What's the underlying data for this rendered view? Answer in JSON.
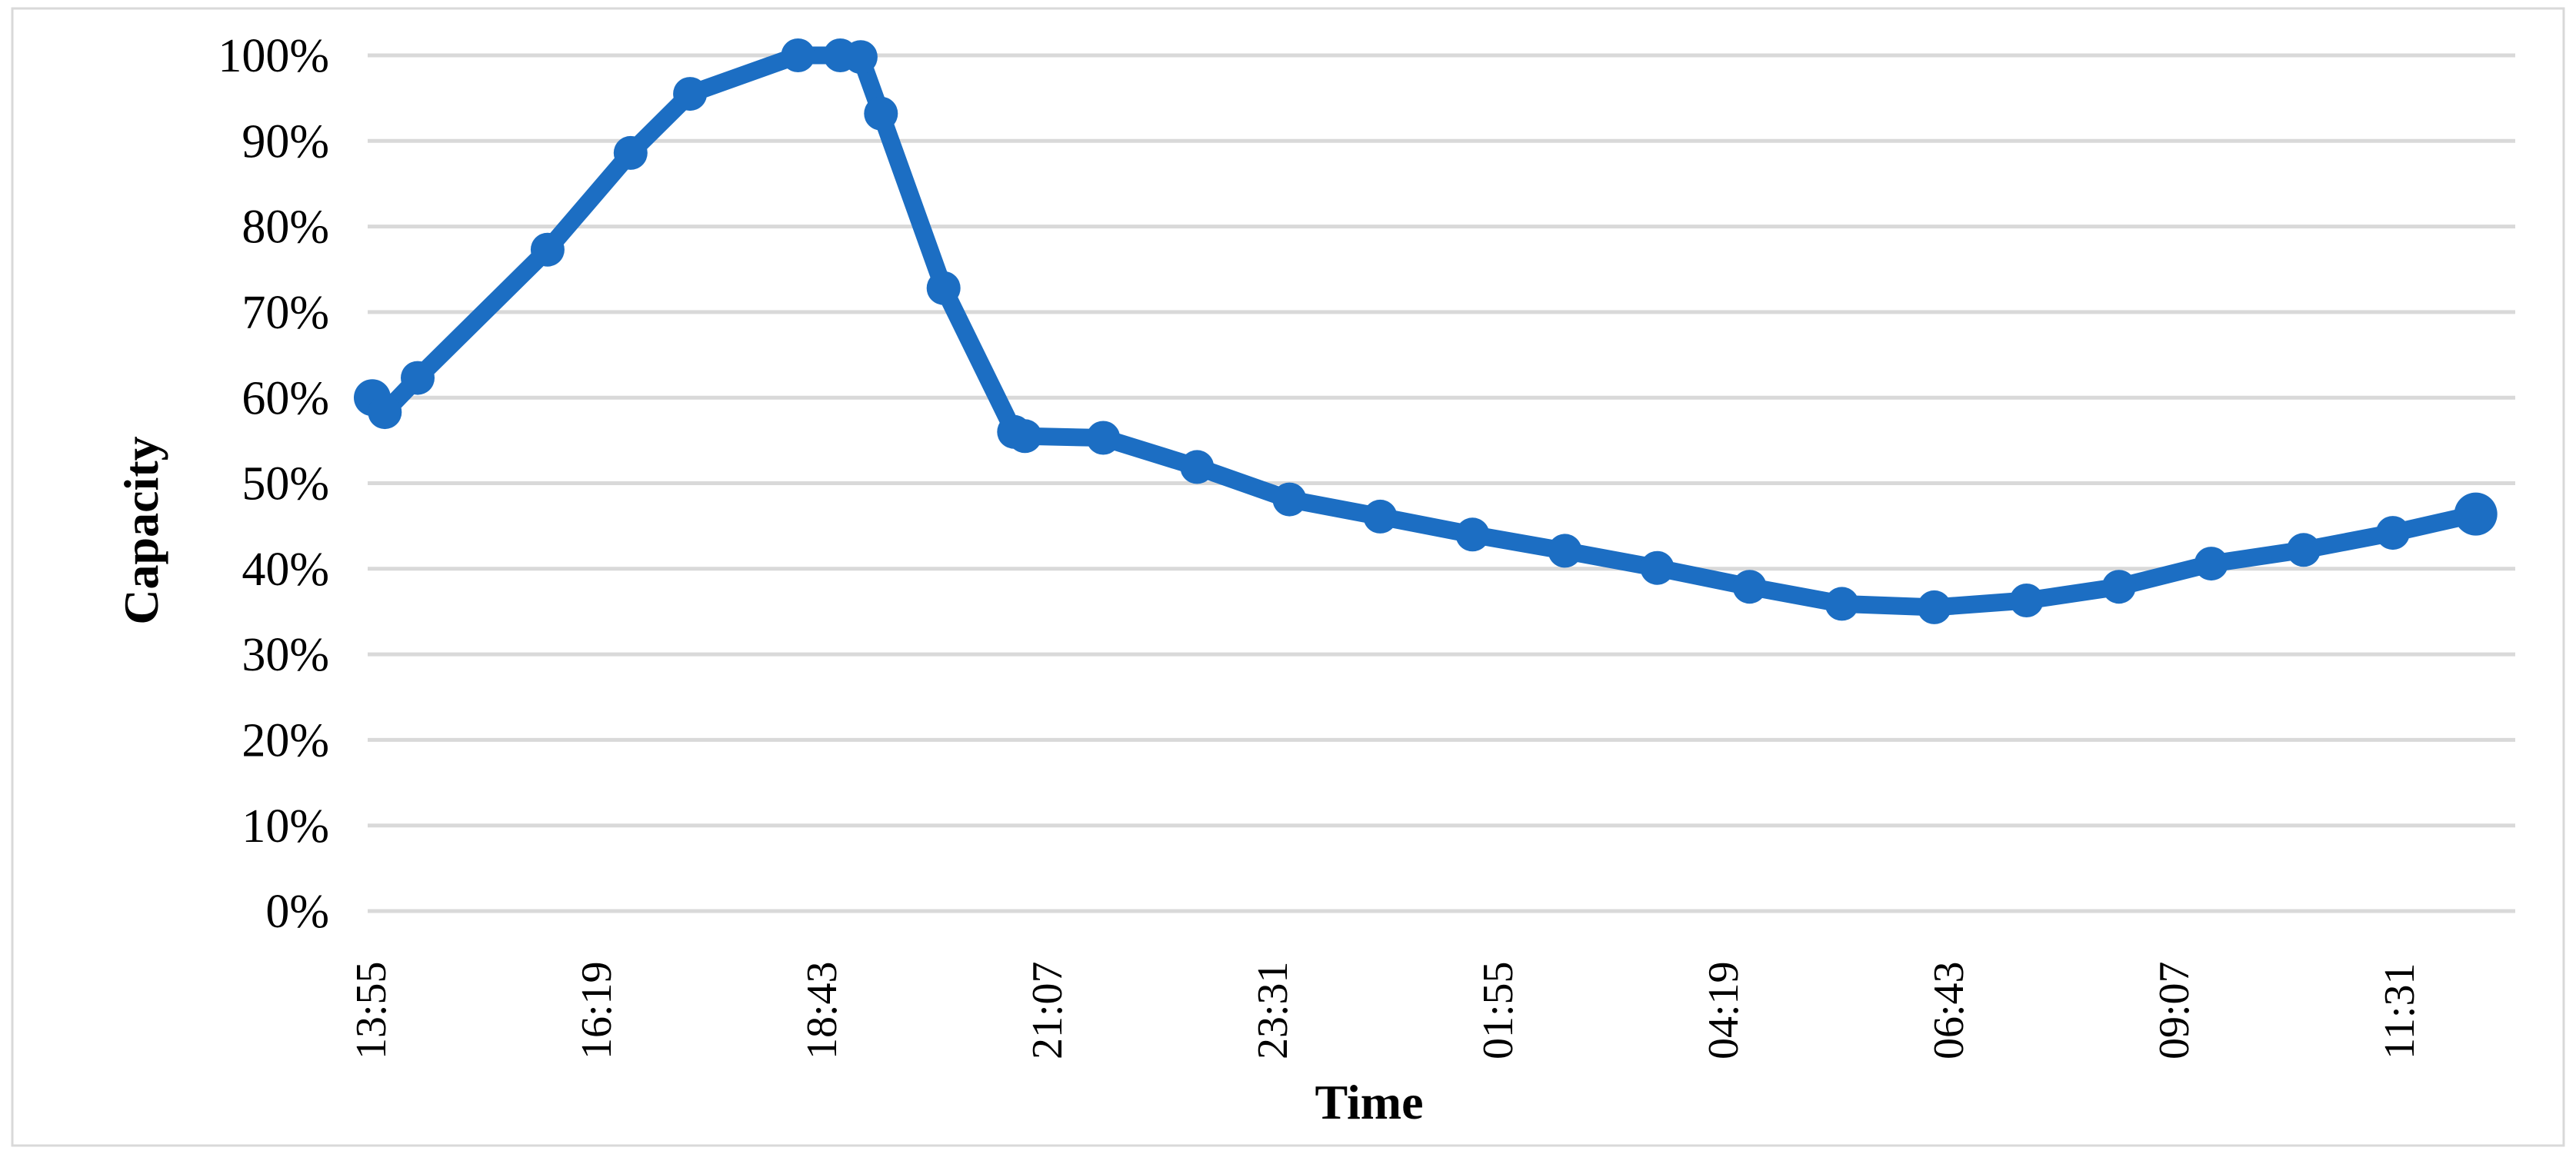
{
  "chart_data": {
    "type": "line",
    "title": "",
    "xlabel": "Time",
    "ylabel": "Capacity",
    "ylim": [
      0,
      100
    ],
    "y_tick_labels": [
      "0%",
      "10%",
      "20%",
      "30%",
      "40%",
      "50%",
      "60%",
      "70%",
      "80%",
      "90%",
      "100%"
    ],
    "x_tick_labels": [
      "13:55",
      "16:19",
      "18:43",
      "21:07",
      "23:31",
      "01:55",
      "04:19",
      "06:43",
      "09:07",
      "11:31"
    ],
    "x_tick_interval_minutes": 144,
    "x_axis_start_time": "13:55",
    "grid": "horizontal-only",
    "legend_position": "none",
    "series": [
      {
        "name": "Capacity",
        "color": "#1C6EC3",
        "marker": "circle",
        "points": [
          {
            "t": "13:56",
            "v": 60.0
          },
          {
            "t": "14:04",
            "v": 58.3
          },
          {
            "t": "14:25",
            "v": 62.3
          },
          {
            "t": "15:48",
            "v": 77.3
          },
          {
            "t": "16:41",
            "v": 88.6
          },
          {
            "t": "17:19",
            "v": 95.5
          },
          {
            "t": "18:28",
            "v": 100
          },
          {
            "t": "18:55",
            "v": 100
          },
          {
            "t": "19:08",
            "v": 99.8
          },
          {
            "t": "19:21",
            "v": 93.2
          },
          {
            "t": "20:01",
            "v": 72.8
          },
          {
            "t": "20:46",
            "v": 56.0
          },
          {
            "t": "20:53",
            "v": 55.5
          },
          {
            "t": "21:43",
            "v": 55.3
          },
          {
            "t": "22:43",
            "v": 51.9
          },
          {
            "t": "23:42",
            "v": 48.1
          },
          {
            "t": "00:40",
            "v": 46.1
          },
          {
            "t": "01:39",
            "v": 44.0
          },
          {
            "t": "02:38",
            "v": 42.1
          },
          {
            "t": "03:37",
            "v": 40.1
          },
          {
            "t": "04:36",
            "v": 37.9
          },
          {
            "t": "05:35",
            "v": 35.9
          },
          {
            "t": "06:34",
            "v": 35.5
          },
          {
            "t": "07:33",
            "v": 36.3
          },
          {
            "t": "08:32",
            "v": 37.9
          },
          {
            "t": "09:31",
            "v": 40.6
          },
          {
            "t": "10:30",
            "v": 42.2
          },
          {
            "t": "11:27",
            "v": 44.2
          },
          {
            "t": "12:20",
            "v": 46.4
          }
        ]
      }
    ],
    "colors": {
      "line": "#1C6EC3",
      "gridline": "#D9D9D9",
      "axis_line": "#D9D9D9",
      "border": "#D9D9D9",
      "text": "#000000",
      "background": "#FFFFFF"
    }
  }
}
